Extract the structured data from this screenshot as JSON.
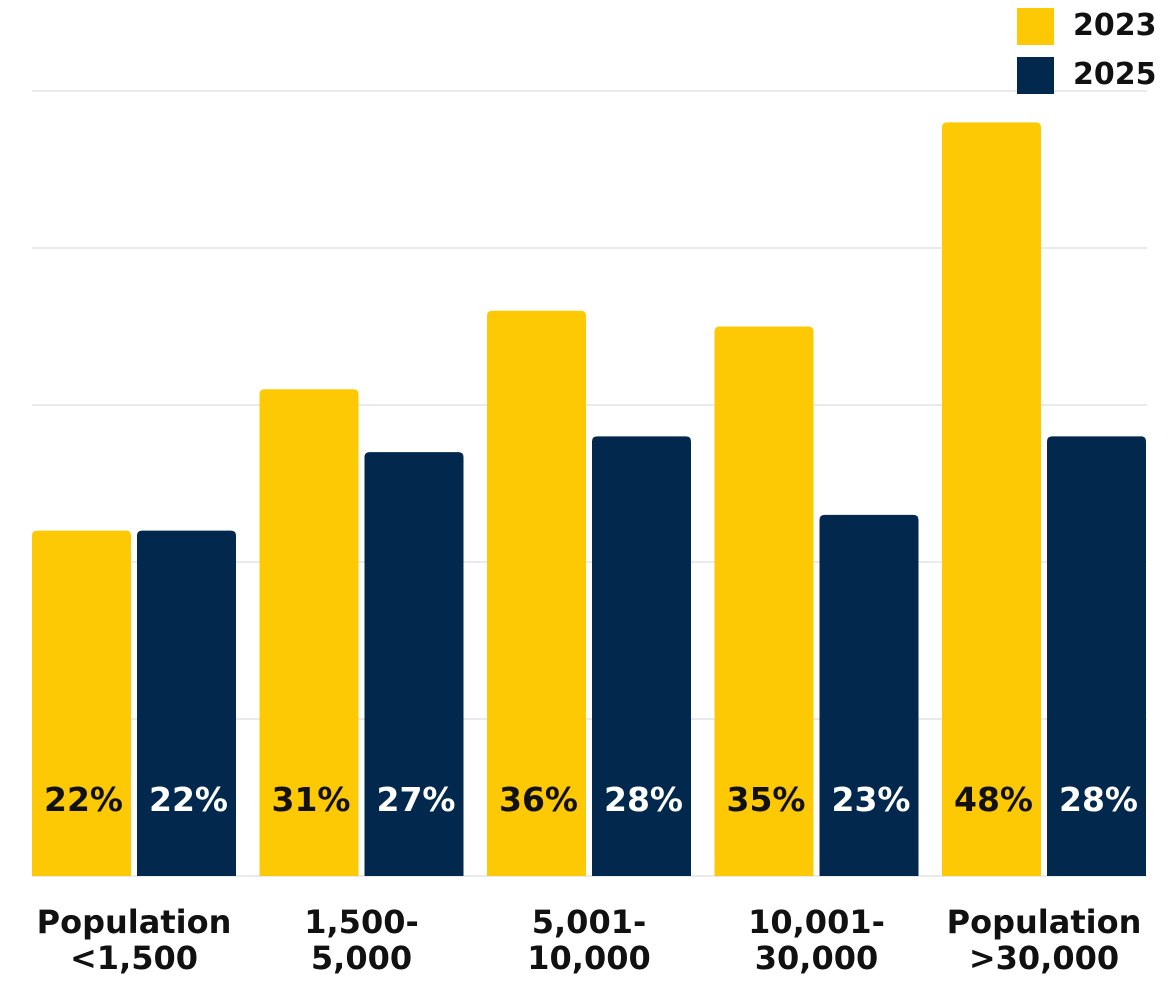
{
  "chart_data": {
    "type": "bar",
    "categories": [
      "Population\n<1,500",
      "1,500-\n5,000",
      "5,001-\n10,000",
      "10,001-\n30,000",
      "Population\n>30,000"
    ],
    "series": [
      {
        "name": "2023",
        "values": [
          22,
          31,
          36,
          35,
          48
        ],
        "color": "#FDC904"
      },
      {
        "name": "2025",
        "values": [
          22,
          27,
          28,
          23,
          28
        ],
        "color": "#02294D"
      }
    ],
    "data_labels": [
      [
        "22%",
        "31%",
        "36%",
        "35%",
        "48%"
      ],
      [
        "22%",
        "27%",
        "28%",
        "23%",
        "28%"
      ]
    ],
    "ylim": [
      0,
      50
    ],
    "grid": true,
    "legend_placement": "top-right",
    "colors": {
      "gridline": "#d4d4d4",
      "label_on_light": "#111111",
      "label_on_dark": "#ffffff",
      "axis_text": "#111111"
    }
  }
}
